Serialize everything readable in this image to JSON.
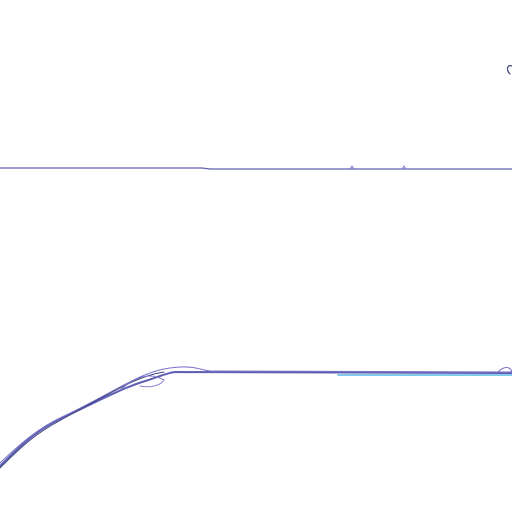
{
  "colors": {
    "background": "#ffffff",
    "primary_stroke": "#5f5fb4",
    "secondary_stroke": "#7a74c8",
    "accent_stroke": "#3fa9df",
    "dark_stroke": "#3a3f7a"
  }
}
